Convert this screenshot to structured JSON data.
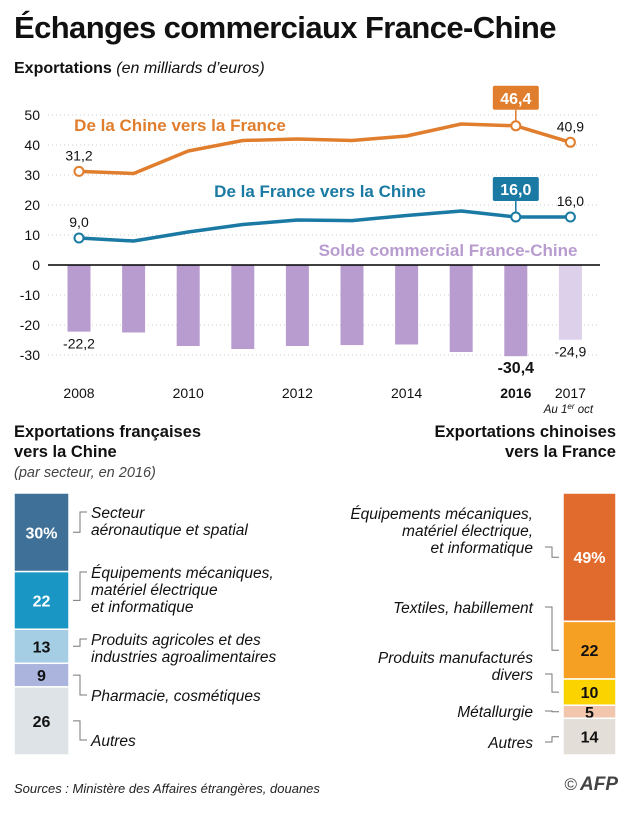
{
  "title": "Échanges commerciaux France-Chine",
  "subtitle": "Exportations",
  "subtitle_unit": "(en milliards d’euros)",
  "colors": {
    "china_to_france": "#e07e2e",
    "france_to_china": "#1a7aa3",
    "balance": "#b89ccf",
    "balance_partial": "#dcd0ea",
    "axis": "#000000",
    "grid": "#cccccc"
  },
  "chart_data": [
    {
      "type": "line+bar",
      "ylim": [
        -30,
        50
      ],
      "yticks": [
        50,
        40,
        30,
        20,
        10,
        0,
        -10,
        -20,
        -30
      ],
      "x": [
        2008,
        2009,
        2010,
        2011,
        2012,
        2013,
        2014,
        2015,
        2016,
        2017
      ],
      "xtick_labels": [
        {
          "x": 2008,
          "label": "2008",
          "bold": false
        },
        {
          "x": 2010,
          "label": "2010",
          "bold": false
        },
        {
          "x": 2012,
          "label": "2012",
          "bold": false
        },
        {
          "x": 2014,
          "label": "2014",
          "bold": false
        },
        {
          "x": 2016,
          "label": "2016",
          "bold": true
        },
        {
          "x": 2017,
          "label": "2017",
          "bold": false
        }
      ],
      "x_note": {
        "text": "Au 1",
        "sup": "er",
        "rest": " oct"
      },
      "series": [
        {
          "name": "De la Chine vers la France",
          "kind": "line",
          "values": [
            31.2,
            30.5,
            38.0,
            41.5,
            42.0,
            41.5,
            43.0,
            47.0,
            46.4,
            40.9
          ],
          "labels": [
            {
              "x": 2008,
              "text": "31,2",
              "style": "plain"
            },
            {
              "x": 2016,
              "text": "46,4",
              "style": "box"
            },
            {
              "x": 2017,
              "text": "40,9",
              "style": "plain"
            }
          ]
        },
        {
          "name": "De la France vers la Chine",
          "kind": "line",
          "values": [
            9.0,
            8.0,
            11.0,
            13.5,
            15.0,
            14.8,
            16.5,
            18.0,
            16.0,
            16.0
          ],
          "labels": [
            {
              "x": 2008,
              "text": "9,0",
              "style": "plain"
            },
            {
              "x": 2016,
              "text": "16,0",
              "style": "box"
            },
            {
              "x": 2017,
              "text": "16,0",
              "style": "plain"
            }
          ]
        },
        {
          "name": "Solde commercial France-Chine",
          "kind": "bar",
          "values": [
            -22.2,
            -22.5,
            -27.0,
            -28.0,
            -27.0,
            -26.7,
            -26.5,
            -29.0,
            -30.4,
            -24.9
          ],
          "labels": [
            {
              "x": 2008,
              "text": "-22,2",
              "style": "plain"
            },
            {
              "x": 2016,
              "text": "-30,4",
              "style": "bold"
            },
            {
              "x": 2017,
              "text": "-24,9",
              "style": "plain"
            }
          ]
        }
      ]
    },
    {
      "type": "stacked-bar",
      "name": "Exportations françaises vers la Chine",
      "categories": [
        "Secteur aéronautique et spatial",
        "Équipements mécaniques, matériel électrique et informatique",
        "Produits agricoles et des industries agroalimentaires",
        "Pharmacie, cosmétiques",
        "Autres"
      ],
      "values": [
        30,
        22,
        13,
        9,
        26
      ],
      "value_labels": [
        "30%",
        "22",
        "13",
        "9",
        "26"
      ],
      "colors": [
        "#3e7098",
        "#1a96c5",
        "#a5cee4",
        "#aab4dc",
        "#dde3e6"
      ],
      "label_lines": [
        [
          "Secteur",
          "aéronautique et spatial"
        ],
        [
          "Équipements mécaniques,",
          "matériel électrique",
          "et informatique"
        ],
        [
          "Produits agricoles et des",
          "industries agroalimentaires"
        ],
        [
          "Pharmacie, cosmétiques"
        ],
        [
          "Autres"
        ]
      ]
    },
    {
      "type": "stacked-bar",
      "name": "Exportations chinoises vers la France",
      "categories": [
        "Équipements mécaniques, matériel électrique, et informatique",
        "Textiles, habillement",
        "Produits manufacturés divers",
        "Métallurgie",
        "Autres"
      ],
      "values": [
        49,
        22,
        10,
        5,
        14
      ],
      "value_labels": [
        "49%",
        "22",
        "10",
        "5",
        "14"
      ],
      "colors": [
        "#e06b2c",
        "#f5a022",
        "#fbd400",
        "#f2c5ad",
        "#e3ded8"
      ],
      "label_lines": [
        [
          "Équipements mécaniques,",
          "matériel électrique,",
          "et informatique"
        ],
        [
          "Textiles, habillement"
        ],
        [
          "Produits manufacturés",
          "divers"
        ],
        [
          "Métallurgie"
        ],
        [
          "Autres"
        ]
      ]
    }
  ],
  "sections": {
    "france": {
      "title_l1": "Exportations françaises",
      "title_l2": "vers la Chine",
      "subtitle": "(par secteur, en 2016)"
    },
    "china": {
      "title_l1": "Exportations chinoises",
      "title_l2": "vers la France"
    }
  },
  "footer": {
    "sources": "Sources : Ministère des Affaires étrangères, douanes",
    "credit": "AFP",
    "copyright": "©"
  }
}
